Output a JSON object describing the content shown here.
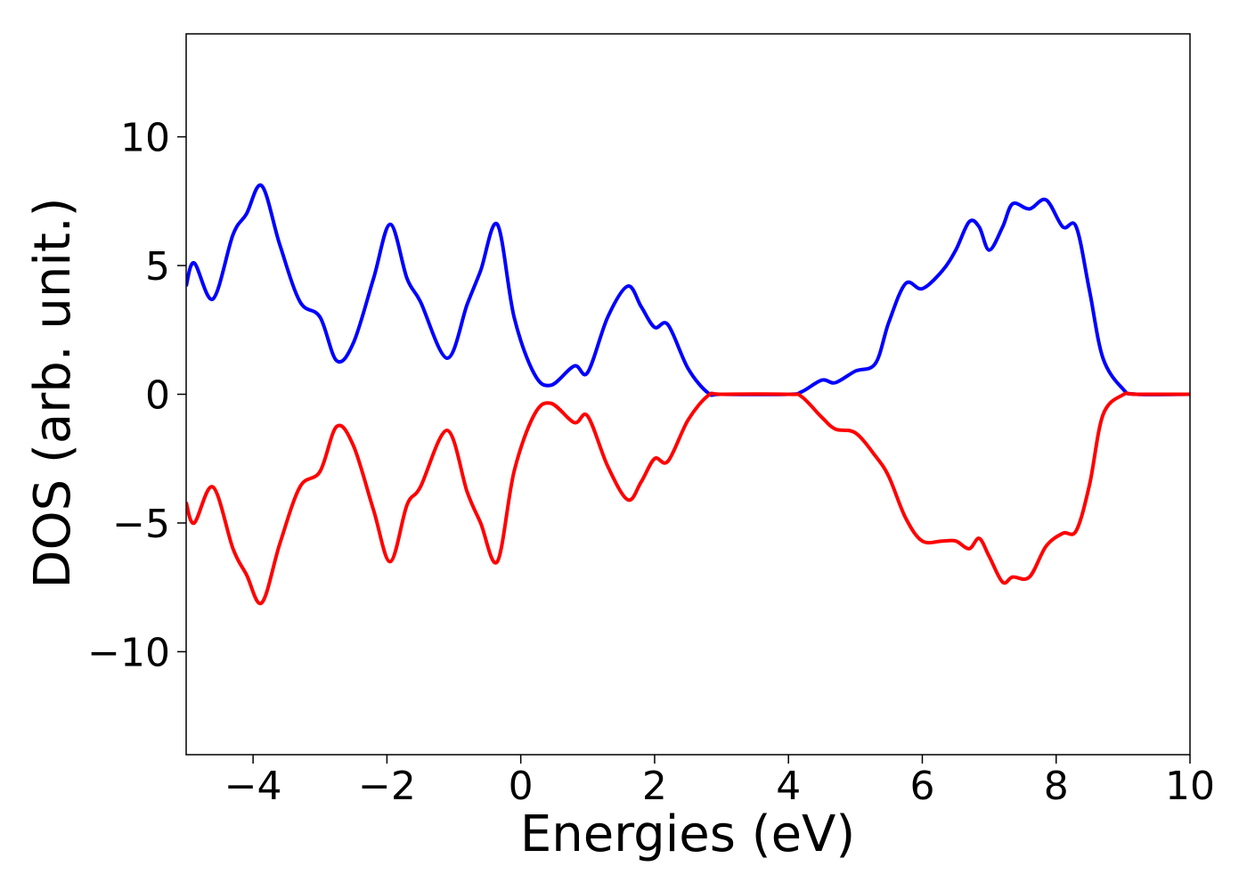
{
  "chart_data": {
    "type": "line",
    "xlabel": "Energies (eV)",
    "ylabel": "DOS (arb. unit.)",
    "x": [
      -5,
      -4.88,
      -4.6,
      -4.3,
      -4.1,
      -3.87,
      -3.6,
      -3.3,
      -3.0,
      -2.75,
      -2.5,
      -2.2,
      -1.95,
      -1.7,
      -1.5,
      -1.1,
      -0.8,
      -0.6,
      -0.35,
      -0.1,
      0.2,
      0.45,
      0.8,
      1.0,
      1.3,
      1.6,
      1.8,
      2.0,
      2.2,
      2.5,
      2.8,
      3.0,
      4.0,
      4.2,
      4.5,
      4.7,
      5.0,
      5.3,
      5.5,
      5.75,
      6.0,
      6.3,
      6.5,
      6.7,
      6.85,
      7.0,
      7.2,
      7.35,
      7.6,
      7.85,
      8.1,
      8.3,
      8.5,
      8.7,
      9.0,
      9.2,
      10
    ],
    "series": [
      {
        "color": "#0000ff",
        "values": [
          4.2,
          5.1,
          3.7,
          6.2,
          7.0,
          8.1,
          5.8,
          3.6,
          3.0,
          1.3,
          2.0,
          4.5,
          6.6,
          4.5,
          3.6,
          1.4,
          3.5,
          4.8,
          6.6,
          3.0,
          0.8,
          0.35,
          1.1,
          0.85,
          3.0,
          4.2,
          3.4,
          2.6,
          2.7,
          1.0,
          0.05,
          0,
          0,
          0.1,
          0.55,
          0.45,
          0.9,
          1.2,
          2.8,
          4.3,
          4.1,
          4.8,
          5.6,
          6.7,
          6.5,
          5.6,
          6.5,
          7.4,
          7.2,
          7.55,
          6.5,
          6.5,
          4.0,
          1.4,
          0.2,
          0,
          0
        ]
      },
      {
        "color": "#ff0000",
        "values": [
          -4.2,
          -5.0,
          -3.6,
          -6.0,
          -7.0,
          -8.1,
          -5.8,
          -3.6,
          -3.0,
          -1.25,
          -2.0,
          -4.5,
          -6.5,
          -4.3,
          -3.6,
          -1.4,
          -3.8,
          -5.0,
          -6.5,
          -3.0,
          -0.8,
          -0.35,
          -1.1,
          -0.85,
          -2.8,
          -4.1,
          -3.4,
          -2.5,
          -2.6,
          -1.0,
          -0.05,
          0,
          0,
          -0.1,
          -0.9,
          -1.35,
          -1.5,
          -2.4,
          -3.2,
          -4.8,
          -5.7,
          -5.7,
          -5.7,
          -6.0,
          -5.6,
          -6.3,
          -7.3,
          -7.1,
          -7.1,
          -5.9,
          -5.4,
          -5.3,
          -3.5,
          -0.8,
          -0.02,
          0,
          0
        ]
      }
    ],
    "xlim": [
      -5,
      10
    ],
    "xticks": [
      {
        "value": -4,
        "label": "−4"
      },
      {
        "value": -2,
        "label": "−2"
      },
      0,
      2,
      4,
      6,
      8,
      10
    ],
    "ylim": [
      -14,
      14
    ],
    "yticks": [
      {
        "value": -10,
        "label": "−10"
      },
      {
        "value": -5,
        "label": "−5"
      },
      0,
      5,
      10
    ],
    "grid": false
  }
}
